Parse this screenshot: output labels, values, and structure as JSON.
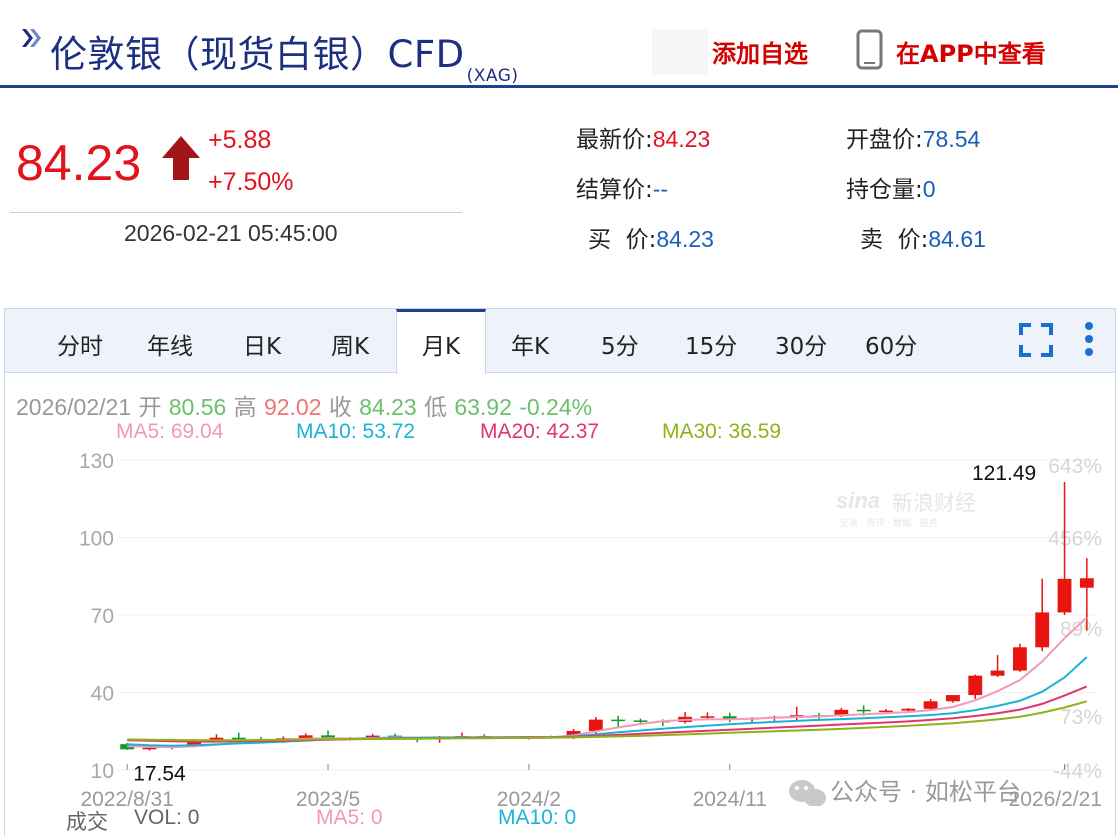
{
  "header": {
    "title": "伦敦银（现货白银）CFD",
    "code": "(XAG)",
    "add_watchlist": "添加自选",
    "open_in_app": "在APP中查看",
    "icons": [
      "double-chevron-icon",
      "phone-icon"
    ]
  },
  "quote": {
    "last": "84.23",
    "change": "+5.88",
    "change_pct": "+7.50%",
    "time": "2026-02-21 05:45:00",
    "fields": [
      {
        "label": "最新价:",
        "value": "84.23"
      },
      {
        "label": "开盘价:",
        "value": "78.54"
      },
      {
        "label": "结算价:",
        "value": "--"
      },
      {
        "label": "持仓量:",
        "value": "0"
      },
      {
        "label": "买  价:",
        "value": "84.23"
      },
      {
        "label": "卖  价:",
        "value": "84.61"
      }
    ],
    "colors": {
      "up": "#e1141e",
      "neutral": "#1a5fb4",
      "brand": "#1f3f8f"
    }
  },
  "tabs": [
    {
      "label": "分时",
      "active": false
    },
    {
      "label": "年线",
      "active": false
    },
    {
      "label": "日K",
      "active": false
    },
    {
      "label": "周K",
      "active": false
    },
    {
      "label": "月K",
      "active": true
    },
    {
      "label": "年K",
      "active": false
    },
    {
      "label": "5分",
      "active": false
    },
    {
      "label": "15分",
      "active": false
    },
    {
      "label": "30分",
      "active": false
    },
    {
      "label": "60分",
      "active": false
    }
  ],
  "toolbar_icons": [
    "fullscreen-icon",
    "more-vertical-icon"
  ],
  "ohlc": {
    "date": "2026/02/21",
    "open_label": "开",
    "open": "80.56",
    "high_label": "高",
    "high": "92.02",
    "close_label": "收",
    "close": "84.23",
    "low_label": "低",
    "low": "63.92",
    "change": "-0.24%"
  },
  "ma_legend": [
    {
      "label": "MA5: 69.04",
      "color": "#f298b8"
    },
    {
      "label": "MA10: 53.72",
      "color": "#1ab3d6"
    },
    {
      "label": "MA20: 42.37",
      "color": "#e0366c"
    },
    {
      "label": "MA30: 36.59",
      "color": "#8cb318"
    }
  ],
  "volume_row": {
    "label": "成交",
    "vol": "VOL: 0",
    "ma5": "MA5: 0",
    "ma10": "MA10: 0"
  },
  "watermarks": {
    "sina": "新浪财经",
    "sina_sub": "交易 · 资讯 · 数据 · 服务",
    "wechat": "公众号 · 如松平台"
  },
  "chart_data": {
    "type": "candlestick",
    "interval": "monthly",
    "y_ticks": [
      10,
      40,
      70,
      100,
      130
    ],
    "ylim": [
      10,
      130
    ],
    "pct_ticks": [
      {
        "label": "-44%",
        "value": 10
      },
      {
        "label": "73%",
        "value": 31
      },
      {
        "label": "89%",
        "value": 65
      },
      {
        "label": "456%",
        "value": 100
      },
      {
        "label": "643%",
        "value": 128
      }
    ],
    "x_labels": [
      {
        "label": "2022/8/31",
        "index": 0
      },
      {
        "label": "2023/5",
        "index": 9
      },
      {
        "label": "2024/2",
        "index": 18
      },
      {
        "label": "2024/11",
        "index": 27
      },
      {
        "label": "2026/2/21",
        "index": 42
      }
    ],
    "annotations": [
      {
        "label": "121.49",
        "index": 41,
        "value": 121.49
      },
      {
        "label": "17.54",
        "index": 1,
        "value": 17.54
      }
    ],
    "candles": [
      {
        "o": 20.0,
        "h": 20.5,
        "l": 17.8,
        "c": 18.0
      },
      {
        "o": 18.2,
        "h": 19.0,
        "l": 17.54,
        "c": 18.6
      },
      {
        "o": 18.6,
        "h": 19.5,
        "l": 18.0,
        "c": 19.2
      },
      {
        "o": 19.2,
        "h": 22.0,
        "l": 18.8,
        "c": 21.5
      },
      {
        "o": 21.5,
        "h": 23.8,
        "l": 21.0,
        "c": 22.5
      },
      {
        "o": 22.5,
        "h": 24.5,
        "l": 21.5,
        "c": 21.9
      },
      {
        "o": 21.9,
        "h": 22.8,
        "l": 20.3,
        "c": 21.4
      },
      {
        "o": 21.4,
        "h": 23.0,
        "l": 20.5,
        "c": 22.3
      },
      {
        "o": 22.3,
        "h": 24.2,
        "l": 22.0,
        "c": 23.4
      },
      {
        "o": 23.4,
        "h": 25.3,
        "l": 22.0,
        "c": 22.3
      },
      {
        "o": 22.3,
        "h": 22.8,
        "l": 21.5,
        "c": 22.0
      },
      {
        "o": 22.0,
        "h": 24.0,
        "l": 21.8,
        "c": 23.3
      },
      {
        "o": 23.3,
        "h": 24.1,
        "l": 22.5,
        "c": 22.4
      },
      {
        "o": 22.4,
        "h": 22.7,
        "l": 20.7,
        "c": 21.8
      },
      {
        "o": 21.8,
        "h": 23.2,
        "l": 20.5,
        "c": 22.9
      },
      {
        "o": 22.9,
        "h": 24.5,
        "l": 22.3,
        "c": 23.1
      },
      {
        "o": 23.1,
        "h": 23.8,
        "l": 22.0,
        "c": 22.5
      },
      {
        "o": 22.5,
        "h": 22.8,
        "l": 22.1,
        "c": 22.6
      },
      {
        "o": 22.6,
        "h": 23.1,
        "l": 21.8,
        "c": 23.0
      },
      {
        "o": 23.0,
        "h": 23.3,
        "l": 22.1,
        "c": 22.9
      },
      {
        "o": 22.9,
        "h": 25.9,
        "l": 22.0,
        "c": 25.1
      },
      {
        "o": 25.1,
        "h": 30.5,
        "l": 24.0,
        "c": 29.5
      },
      {
        "o": 29.5,
        "h": 31.0,
        "l": 26.5,
        "c": 29.2
      },
      {
        "o": 29.2,
        "h": 29.9,
        "l": 27.5,
        "c": 29.0
      },
      {
        "o": 29.0,
        "h": 29.6,
        "l": 27.0,
        "c": 28.6
      },
      {
        "o": 28.6,
        "h": 32.5,
        "l": 28.0,
        "c": 30.6
      },
      {
        "o": 30.6,
        "h": 32.3,
        "l": 29.8,
        "c": 30.8
      },
      {
        "o": 30.8,
        "h": 32.2,
        "l": 28.5,
        "c": 29.8
      },
      {
        "o": 29.8,
        "h": 30.5,
        "l": 28.4,
        "c": 30.1
      },
      {
        "o": 30.1,
        "h": 31.0,
        "l": 29.0,
        "c": 30.6
      },
      {
        "o": 30.6,
        "h": 34.5,
        "l": 29.0,
        "c": 31.2
      },
      {
        "o": 31.2,
        "h": 32.1,
        "l": 29.8,
        "c": 31.0
      },
      {
        "o": 31.0,
        "h": 34.0,
        "l": 30.5,
        "c": 33.3
      },
      {
        "o": 33.3,
        "h": 35.0,
        "l": 31.0,
        "c": 32.8
      },
      {
        "o": 32.8,
        "h": 33.6,
        "l": 32.0,
        "c": 33.0
      },
      {
        "o": 33.0,
        "h": 34.0,
        "l": 32.5,
        "c": 33.7
      },
      {
        "o": 33.7,
        "h": 37.5,
        "l": 33.0,
        "c": 36.6
      },
      {
        "o": 36.6,
        "h": 38.0,
        "l": 36.0,
        "c": 39.0
      },
      {
        "o": 39.0,
        "h": 46.9,
        "l": 37.5,
        "c": 46.5
      },
      {
        "o": 46.5,
        "h": 54.5,
        "l": 46.0,
        "c": 48.5
      },
      {
        "o": 48.5,
        "h": 58.9,
        "l": 48.0,
        "c": 57.5
      },
      {
        "o": 57.5,
        "h": 84.0,
        "l": 56.0,
        "c": 71.0
      },
      {
        "o": 71.0,
        "h": 121.49,
        "l": 70.0,
        "c": 84.0
      },
      {
        "o": 80.56,
        "h": 92.02,
        "l": 63.92,
        "c": 84.23
      }
    ],
    "ma_series": [
      {
        "name": "MA5",
        "color": "#f298b8",
        "values": [
          19.2,
          19.0,
          18.8,
          19.2,
          19.8,
          20.6,
          21.2,
          21.8,
          22.1,
          22.3,
          22.2,
          22.4,
          22.6,
          22.5,
          22.5,
          22.6,
          22.6,
          22.7,
          22.7,
          22.6,
          23.4,
          25.0,
          26.5,
          27.8,
          28.9,
          29.4,
          29.6,
          29.6,
          29.9,
          30.2,
          30.5,
          30.7,
          31.2,
          31.6,
          32.0,
          32.4,
          33.2,
          34.4,
          37.0,
          40.5,
          44.8,
          52.0,
          61.0,
          69.04
        ]
      },
      {
        "name": "MA10",
        "color": "#1ab3d6",
        "values": [
          20.0,
          19.6,
          19.4,
          19.6,
          19.9,
          20.3,
          20.6,
          21.0,
          21.4,
          21.8,
          22.0,
          22.2,
          22.4,
          22.5,
          22.6,
          22.6,
          22.6,
          22.7,
          22.7,
          22.7,
          23.0,
          23.8,
          24.6,
          25.3,
          26.0,
          26.6,
          27.2,
          27.7,
          28.2,
          28.6,
          29.0,
          29.4,
          29.7,
          30.0,
          30.4,
          30.8,
          31.3,
          32.0,
          33.2,
          34.8,
          36.8,
          40.3,
          45.8,
          53.72
        ]
      },
      {
        "name": "MA20",
        "color": "#e0366c",
        "values": [
          21.5,
          21.3,
          21.1,
          21.0,
          21.0,
          21.1,
          21.2,
          21.3,
          21.5,
          21.7,
          21.9,
          22.0,
          22.1,
          22.2,
          22.3,
          22.4,
          22.5,
          22.5,
          22.6,
          22.6,
          22.8,
          23.2,
          23.6,
          24.0,
          24.4,
          24.8,
          25.2,
          25.6,
          26.0,
          26.4,
          26.8,
          27.2,
          27.6,
          28.0,
          28.4,
          28.8,
          29.4,
          30.0,
          30.9,
          32.0,
          33.4,
          35.6,
          38.8,
          42.37
        ]
      },
      {
        "name": "MA30",
        "color": "#8cb318",
        "values": [
          21.8,
          21.7,
          21.6,
          21.5,
          21.5,
          21.5,
          21.6,
          21.7,
          21.8,
          21.9,
          22.0,
          22.0,
          22.1,
          22.1,
          22.2,
          22.3,
          22.3,
          22.4,
          22.4,
          22.5,
          22.6,
          22.8,
          23.0,
          23.2,
          23.5,
          23.8,
          24.1,
          24.4,
          24.7,
          25.0,
          25.3,
          25.6,
          25.9,
          26.3,
          26.7,
          27.1,
          27.6,
          28.1,
          28.8,
          29.6,
          30.6,
          32.2,
          34.2,
          36.59
        ]
      }
    ]
  }
}
